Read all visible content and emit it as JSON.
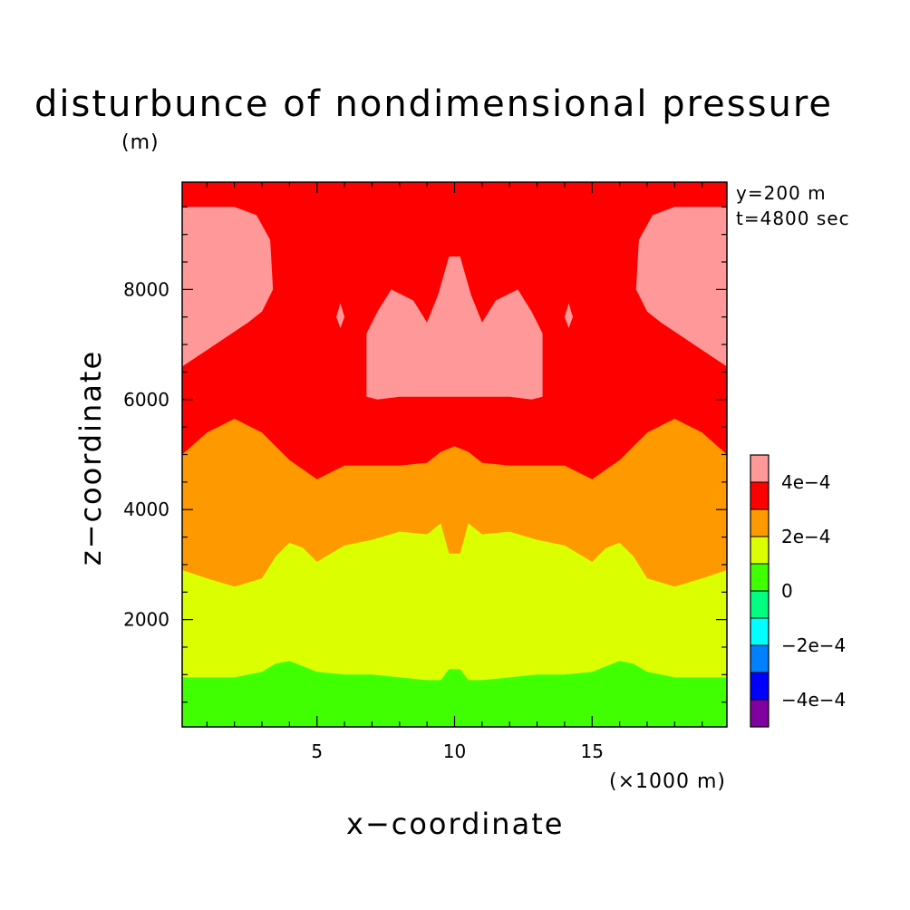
{
  "chart_data": {
    "type": "contour",
    "title": "disturbunce of nondimensional pressure",
    "xlabel": "x−coordinate",
    "ylabel": "z−coordinate",
    "x_unit": "(×1000 m)",
    "y_unit": "(m)",
    "xlim": [
      0.1,
      19.9
    ],
    "ylim": [
      50,
      9950
    ],
    "x_major_ticks": [
      5,
      10,
      15
    ],
    "x_tick_labels": [
      "5",
      "10",
      "15"
    ],
    "x_minor_step": 1,
    "y_major_ticks": [
      2000,
      4000,
      6000,
      8000
    ],
    "y_tick_labels": [
      "2000",
      "4000",
      "6000",
      "8000"
    ],
    "y_minor_step": 500,
    "annotations": [
      "y=200 m",
      "t=4800 sec"
    ],
    "levels": [
      -0.0005,
      -0.0004,
      -0.0003,
      -0.0002,
      -0.0001,
      0,
      0.0001,
      0.0002,
      0.0003,
      0.0004,
      0.0005
    ],
    "colors": [
      "#8000a0",
      "#0000ff",
      "#0080ff",
      "#00ffff",
      "#00ff80",
      "#40ff00",
      "#dcff00",
      "#ff9900",
      "#ff0000",
      "#ff9999"
    ],
    "legend_labels": [
      {
        "text": "−4e−4",
        "level": -0.0004
      },
      {
        "text": "−2e−4",
        "level": -0.0002
      },
      {
        "text": "0",
        "level": 0
      },
      {
        "text": "2e−4",
        "level": 0.0002
      },
      {
        "text": "4e−4",
        "level": 0.0004
      }
    ],
    "boundaries": [
      {
        "name": "green-yellow",
        "level": 0.0001,
        "points": [
          [
            0.1,
            950
          ],
          [
            1,
            950
          ],
          [
            2,
            950
          ],
          [
            3,
            1050
          ],
          [
            3.5,
            1200
          ],
          [
            4,
            1250
          ],
          [
            5,
            1050
          ],
          [
            6,
            1000
          ],
          [
            7,
            1000
          ],
          [
            8,
            950
          ],
          [
            9,
            900
          ],
          [
            9.5,
            900
          ],
          [
            9.8,
            1100
          ],
          [
            10.2,
            1100
          ],
          [
            10.5,
            900
          ],
          [
            11,
            900
          ],
          [
            12,
            950
          ],
          [
            13,
            1000
          ],
          [
            14,
            1000
          ],
          [
            15,
            1050
          ],
          [
            16,
            1250
          ],
          [
            16.5,
            1200
          ],
          [
            17,
            1050
          ],
          [
            18,
            950
          ],
          [
            19,
            950
          ],
          [
            19.9,
            950
          ]
        ]
      },
      {
        "name": "yellow-orange",
        "level": 0.0002,
        "points": [
          [
            0.1,
            2900
          ],
          [
            1,
            2750
          ],
          [
            2,
            2600
          ],
          [
            3,
            2750
          ],
          [
            3.5,
            3150
          ],
          [
            4,
            3400
          ],
          [
            4.5,
            3300
          ],
          [
            5,
            3050
          ],
          [
            5.5,
            3200
          ],
          [
            6,
            3350
          ],
          [
            7,
            3450
          ],
          [
            8,
            3600
          ],
          [
            9,
            3550
          ],
          [
            9.5,
            3750
          ],
          [
            9.8,
            3200
          ],
          [
            10.2,
            3200
          ],
          [
            10.5,
            3750
          ],
          [
            11,
            3550
          ],
          [
            12,
            3600
          ],
          [
            13,
            3450
          ],
          [
            14,
            3350
          ],
          [
            14.5,
            3200
          ],
          [
            15,
            3050
          ],
          [
            15.5,
            3300
          ],
          [
            16,
            3400
          ],
          [
            16.5,
            3150
          ],
          [
            17,
            2750
          ],
          [
            18,
            2600
          ],
          [
            19,
            2750
          ],
          [
            19.9,
            2900
          ]
        ]
      },
      {
        "name": "orange-red",
        "level": 0.0003,
        "points": [
          [
            0.1,
            5000
          ],
          [
            1,
            5400
          ],
          [
            2,
            5650
          ],
          [
            3,
            5400
          ],
          [
            4,
            4900
          ],
          [
            5,
            4550
          ],
          [
            6,
            4800
          ],
          [
            7,
            4800
          ],
          [
            8,
            4800
          ],
          [
            9,
            4850
          ],
          [
            9.5,
            5050
          ],
          [
            10,
            5150
          ],
          [
            10.5,
            5050
          ],
          [
            11,
            4850
          ],
          [
            12,
            4800
          ],
          [
            13,
            4800
          ],
          [
            14,
            4800
          ],
          [
            15,
            4550
          ],
          [
            16,
            4900
          ],
          [
            17,
            5400
          ],
          [
            18,
            5650
          ],
          [
            19,
            5400
          ],
          [
            19.9,
            5000
          ]
        ]
      }
    ],
    "regions": [
      {
        "name": "pink-left",
        "level": 0.0004,
        "points": [
          [
            0.1,
            6600
          ],
          [
            1,
            6900
          ],
          [
            2.5,
            7400
          ],
          [
            3,
            7600
          ],
          [
            3.4,
            8000
          ],
          [
            3.3,
            8900
          ],
          [
            2.8,
            9350
          ],
          [
            2,
            9500
          ],
          [
            1,
            9500
          ],
          [
            0.1,
            9500
          ]
        ]
      },
      {
        "name": "pink-right",
        "level": 0.0004,
        "points": [
          [
            19.9,
            6600
          ],
          [
            19,
            6900
          ],
          [
            17.5,
            7400
          ],
          [
            17,
            7600
          ],
          [
            16.6,
            8000
          ],
          [
            16.7,
            8900
          ],
          [
            17.2,
            9350
          ],
          [
            18,
            9500
          ],
          [
            19,
            9500
          ],
          [
            19.9,
            9500
          ]
        ]
      },
      {
        "name": "pink-center",
        "level": 0.0004,
        "points": [
          [
            6.8,
            6050
          ],
          [
            7.2,
            6000
          ],
          [
            8,
            6050
          ],
          [
            9,
            6050
          ],
          [
            10,
            6050
          ],
          [
            11,
            6050
          ],
          [
            12,
            6050
          ],
          [
            12.8,
            6000
          ],
          [
            13.2,
            6050
          ],
          [
            13.2,
            7200
          ],
          [
            12.8,
            7600
          ],
          [
            12.3,
            8000
          ],
          [
            11.5,
            7800
          ],
          [
            11,
            7400
          ],
          [
            10.6,
            7900
          ],
          [
            10.2,
            8600
          ],
          [
            9.8,
            8600
          ],
          [
            9.4,
            7900
          ],
          [
            9,
            7400
          ],
          [
            8.5,
            7800
          ],
          [
            7.7,
            8000
          ],
          [
            7.2,
            7600
          ],
          [
            6.8,
            7200
          ]
        ]
      },
      {
        "name": "pink-speck-left",
        "level": 0.0004,
        "points": [
          [
            5.7,
            7500
          ],
          [
            5.85,
            7750
          ],
          [
            6.0,
            7500
          ],
          [
            5.85,
            7300
          ]
        ]
      },
      {
        "name": "pink-speck-right",
        "level": 0.0004,
        "points": [
          [
            14.0,
            7500
          ],
          [
            14.15,
            7750
          ],
          [
            14.3,
            7500
          ],
          [
            14.15,
            7300
          ]
        ]
      }
    ]
  },
  "annotation_y": "y=200 m",
  "annotation_t": "t=4800 sec"
}
